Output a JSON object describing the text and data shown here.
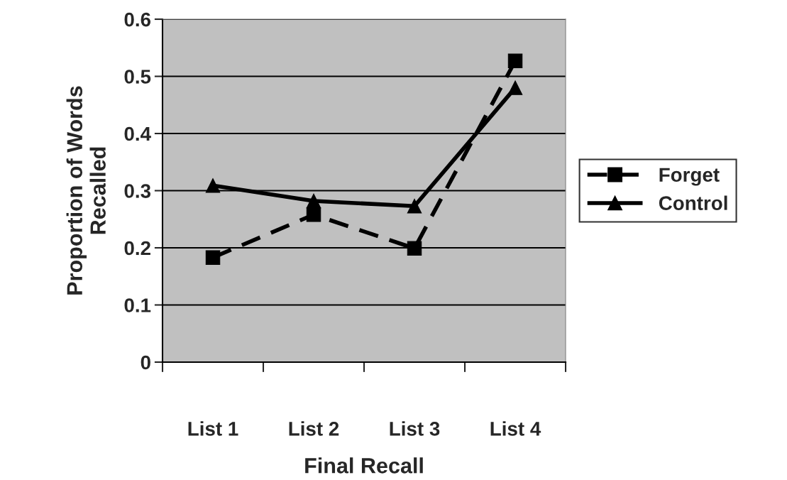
{
  "chart_data": {
    "type": "line",
    "xlabel": "Final Recall",
    "ylabel": "Proportion of Words\nRecalled",
    "categories": [
      "List 1",
      "List 2",
      "List 3",
      "List 4"
    ],
    "series": [
      {
        "name": "Forget",
        "color": "#000000",
        "marker": "square",
        "line_style": "dashed",
        "values": [
          0.183,
          0.258,
          0.199,
          0.527
        ]
      },
      {
        "name": "Control",
        "color": "#000000",
        "marker": "triangle",
        "line_style": "solid",
        "values": [
          0.309,
          0.282,
          0.273,
          0.48
        ]
      }
    ],
    "ylim": [
      0,
      0.6
    ],
    "yticks": [
      0,
      0.1,
      0.2,
      0.3,
      0.4,
      0.5,
      0.6
    ],
    "grid": "y",
    "legend": "right"
  }
}
